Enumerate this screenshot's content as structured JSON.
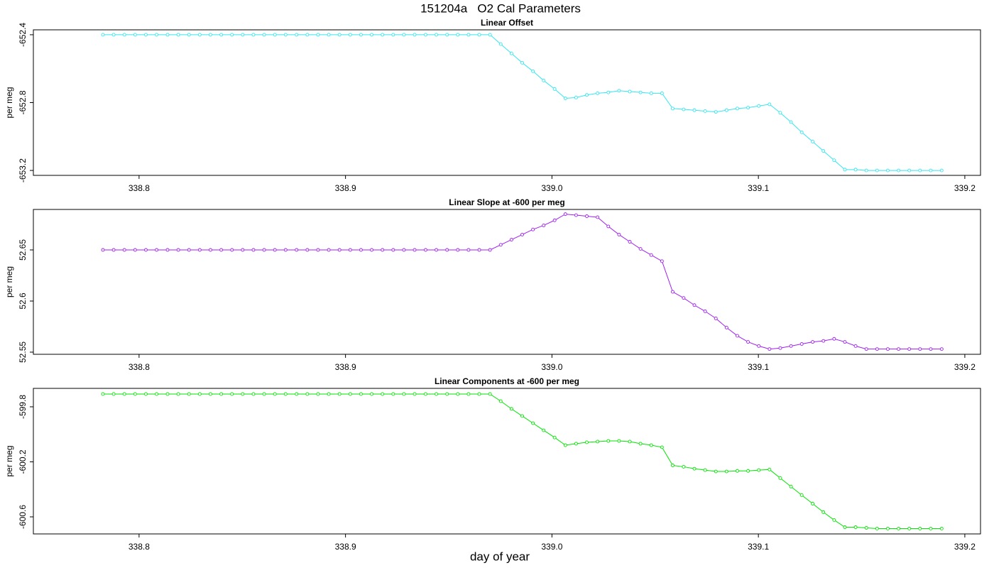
{
  "title": "151204a   O2 Cal Parameters",
  "xlabel": "day of year",
  "chart_data": [
    {
      "type": "line",
      "title": "Linear Offset",
      "ylabel": "per meg",
      "color": "#33e6f0",
      "x": [
        338.7825,
        338.7877,
        338.7929,
        338.7981,
        338.8033,
        338.8085,
        338.8138,
        338.819,
        338.8242,
        338.8294,
        338.8346,
        338.8398,
        338.845,
        338.8502,
        338.8554,
        338.8606,
        338.8658,
        338.871,
        338.8763,
        338.8815,
        338.8867,
        338.8919,
        338.8971,
        338.9023,
        338.9075,
        338.9127,
        338.9179,
        338.9231,
        338.9283,
        338.9335,
        338.9388,
        338.944,
        338.9492,
        338.9544,
        338.9596,
        338.9648,
        338.97,
        338.9752,
        338.9804,
        338.9856,
        338.9908,
        338.996,
        339.0013,
        339.0065,
        339.0117,
        339.0169,
        339.0221,
        339.0273,
        339.0325,
        339.0377,
        339.0429,
        339.0481,
        339.0533,
        339.0585,
        339.0638,
        339.069,
        339.0742,
        339.0794,
        339.0846,
        339.0898,
        339.095,
        339.1002,
        339.1054,
        339.1106,
        339.1158,
        339.121,
        339.1263,
        339.1315,
        339.1367,
        339.1419,
        339.1471,
        339.1523,
        339.1575,
        339.1627,
        339.1679,
        339.1731,
        339.1783,
        339.1835,
        339.1888
      ],
      "values": [
        -652.4,
        -652.4,
        -652.4,
        -652.4,
        -652.4,
        -652.4,
        -652.4,
        -652.4,
        -652.4,
        -652.4,
        -652.4,
        -652.4,
        -652.4,
        -652.4,
        -652.4,
        -652.4,
        -652.4,
        -652.4,
        -652.4,
        -652.4,
        -652.4,
        -652.4,
        -652.4,
        -652.4,
        -652.4,
        -652.4,
        -652.4,
        -652.4,
        -652.4,
        -652.4,
        -652.4,
        -652.4,
        -652.4,
        -652.4,
        -652.4,
        -652.4,
        -652.4,
        -652.455,
        -652.51,
        -652.565,
        -652.615,
        -652.67,
        -652.72,
        -652.775,
        -652.77,
        -652.755,
        -652.745,
        -652.74,
        -652.73,
        -652.735,
        -652.74,
        -652.745,
        -652.745,
        -652.835,
        -652.84,
        -652.845,
        -652.85,
        -652.855,
        -652.845,
        -652.835,
        -652.83,
        -652.82,
        -652.81,
        -652.86,
        -652.915,
        -652.975,
        -653.03,
        -653.085,
        -653.14,
        -653.195,
        -653.195,
        -653.2,
        -653.2,
        -653.2,
        -653.2,
        -653.2,
        -653.2,
        -653.2,
        -653.2
      ],
      "xlim": [
        338.7488,
        339.2076
      ],
      "xticks": [
        338.8,
        338.9,
        {
          "value": 339,
          "label": "339.0"
        },
        339.1,
        339.2
      ],
      "ylim": [
        -653.229,
        -652.371
      ],
      "yticks": [
        -652.4,
        -652.8,
        -653.2
      ]
    },
    {
      "type": "line",
      "title": "Linear Slope at -600 per meg",
      "ylabel": "per meg",
      "color": "#a020f0",
      "x": [
        338.7825,
        338.7877,
        338.7929,
        338.7981,
        338.8033,
        338.8085,
        338.8138,
        338.819,
        338.8242,
        338.8294,
        338.8346,
        338.8398,
        338.845,
        338.8502,
        338.8554,
        338.8606,
        338.8658,
        338.871,
        338.8763,
        338.8815,
        338.8867,
        338.8919,
        338.8971,
        338.9023,
        338.9075,
        338.9127,
        338.9179,
        338.9231,
        338.9283,
        338.9335,
        338.9388,
        338.944,
        338.9492,
        338.9544,
        338.9596,
        338.9648,
        338.97,
        338.9752,
        338.9804,
        338.9856,
        338.9908,
        338.996,
        339.0013,
        339.0065,
        339.0117,
        339.0169,
        339.0221,
        339.0273,
        339.0325,
        339.0377,
        339.0429,
        339.0481,
        339.0533,
        339.0585,
        339.0638,
        339.069,
        339.0742,
        339.0794,
        339.0846,
        339.0898,
        339.095,
        339.1002,
        339.1054,
        339.1106,
        339.1158,
        339.121,
        339.1263,
        339.1315,
        339.1367,
        339.1419,
        339.1471,
        339.1523,
        339.1575,
        339.1627,
        339.1679,
        339.1731,
        339.1783,
        339.1835,
        339.1888
      ],
      "values": [
        52.65,
        52.65,
        52.65,
        52.65,
        52.65,
        52.65,
        52.65,
        52.65,
        52.65,
        52.65,
        52.65,
        52.65,
        52.65,
        52.65,
        52.65,
        52.65,
        52.65,
        52.65,
        52.65,
        52.65,
        52.65,
        52.65,
        52.65,
        52.65,
        52.65,
        52.65,
        52.65,
        52.65,
        52.65,
        52.65,
        52.65,
        52.65,
        52.65,
        52.65,
        52.65,
        52.65,
        52.65,
        52.655,
        52.66,
        52.665,
        52.67,
        52.674,
        52.679,
        52.685,
        52.684,
        52.683,
        52.682,
        52.673,
        52.665,
        52.658,
        52.651,
        52.645,
        52.639,
        52.609,
        52.603,
        52.596,
        52.59,
        52.583,
        52.574,
        52.566,
        52.56,
        52.556,
        52.553,
        52.554,
        52.556,
        52.558,
        52.56,
        52.561,
        52.563,
        52.56,
        52.556,
        52.553,
        52.553,
        52.553,
        52.553,
        52.553,
        52.553,
        52.553,
        52.553
      ],
      "xlim": [
        338.7488,
        339.2076
      ],
      "xticks": [
        338.8,
        338.9,
        {
          "value": 339,
          "label": "339.0"
        },
        339.1,
        339.2
      ],
      "ylim": [
        52.5479,
        52.6896
      ],
      "yticks": [
        52.55,
        52.6,
        52.65
      ]
    },
    {
      "type": "line",
      "title": "Linear Components at -600 per meg",
      "ylabel": "per meg",
      "color": "#00e600",
      "x": [
        338.7825,
        338.7877,
        338.7929,
        338.7981,
        338.8033,
        338.8085,
        338.8138,
        338.819,
        338.8242,
        338.8294,
        338.8346,
        338.8398,
        338.845,
        338.8502,
        338.8554,
        338.8606,
        338.8658,
        338.871,
        338.8763,
        338.8815,
        338.8867,
        338.8919,
        338.8971,
        338.9023,
        338.9075,
        338.9127,
        338.9179,
        338.9231,
        338.9283,
        338.9335,
        338.9388,
        338.944,
        338.9492,
        338.9544,
        338.9596,
        338.9648,
        338.97,
        338.9752,
        338.9804,
        338.9856,
        338.9908,
        338.996,
        339.0013,
        339.0065,
        339.0117,
        339.0169,
        339.0221,
        339.0273,
        339.0325,
        339.0377,
        339.0429,
        339.0481,
        339.0533,
        339.0585,
        339.0638,
        339.069,
        339.0742,
        339.0794,
        339.0846,
        339.0898,
        339.095,
        339.1002,
        339.1054,
        339.1106,
        339.1158,
        339.121,
        339.1263,
        339.1315,
        339.1367,
        339.1419,
        339.1471,
        339.1523,
        339.1575,
        339.1627,
        339.1679,
        339.1731,
        339.1783,
        339.1835,
        339.1888
      ],
      "values": [
        -599.707,
        -599.707,
        -599.707,
        -599.707,
        -599.707,
        -599.707,
        -599.707,
        -599.707,
        -599.707,
        -599.707,
        -599.707,
        -599.707,
        -599.707,
        -599.707,
        -599.707,
        -599.707,
        -599.707,
        -599.707,
        -599.707,
        -599.707,
        -599.707,
        -599.707,
        -599.707,
        -599.707,
        -599.707,
        -599.707,
        -599.707,
        -599.707,
        -599.707,
        -599.707,
        -599.707,
        -599.707,
        -599.707,
        -599.707,
        -599.707,
        -599.707,
        -599.707,
        -599.759,
        -599.815,
        -599.867,
        -599.919,
        -599.971,
        -600.023,
        -600.079,
        -600.068,
        -600.058,
        -600.053,
        -600.048,
        -600.048,
        -600.053,
        -600.068,
        -600.079,
        -600.094,
        -600.226,
        -600.236,
        -600.25,
        -600.26,
        -600.27,
        -600.27,
        -600.266,
        -600.266,
        -600.26,
        -600.256,
        -600.318,
        -600.38,
        -600.442,
        -600.504,
        -600.566,
        -600.623,
        -600.675,
        -600.675,
        -600.68,
        -600.685,
        -600.685,
        -600.685,
        -600.685,
        -600.685,
        -600.685,
        -600.685
      ],
      "xlim": [
        338.7488,
        339.2076
      ],
      "xticks": [
        338.8,
        338.9,
        {
          "value": 339,
          "label": "339.0"
        },
        339.1,
        339.2
      ],
      "ylim": [
        -600.724,
        -599.666
      ],
      "yticks": [
        -599.8,
        -600.2,
        -600.6
      ]
    }
  ]
}
